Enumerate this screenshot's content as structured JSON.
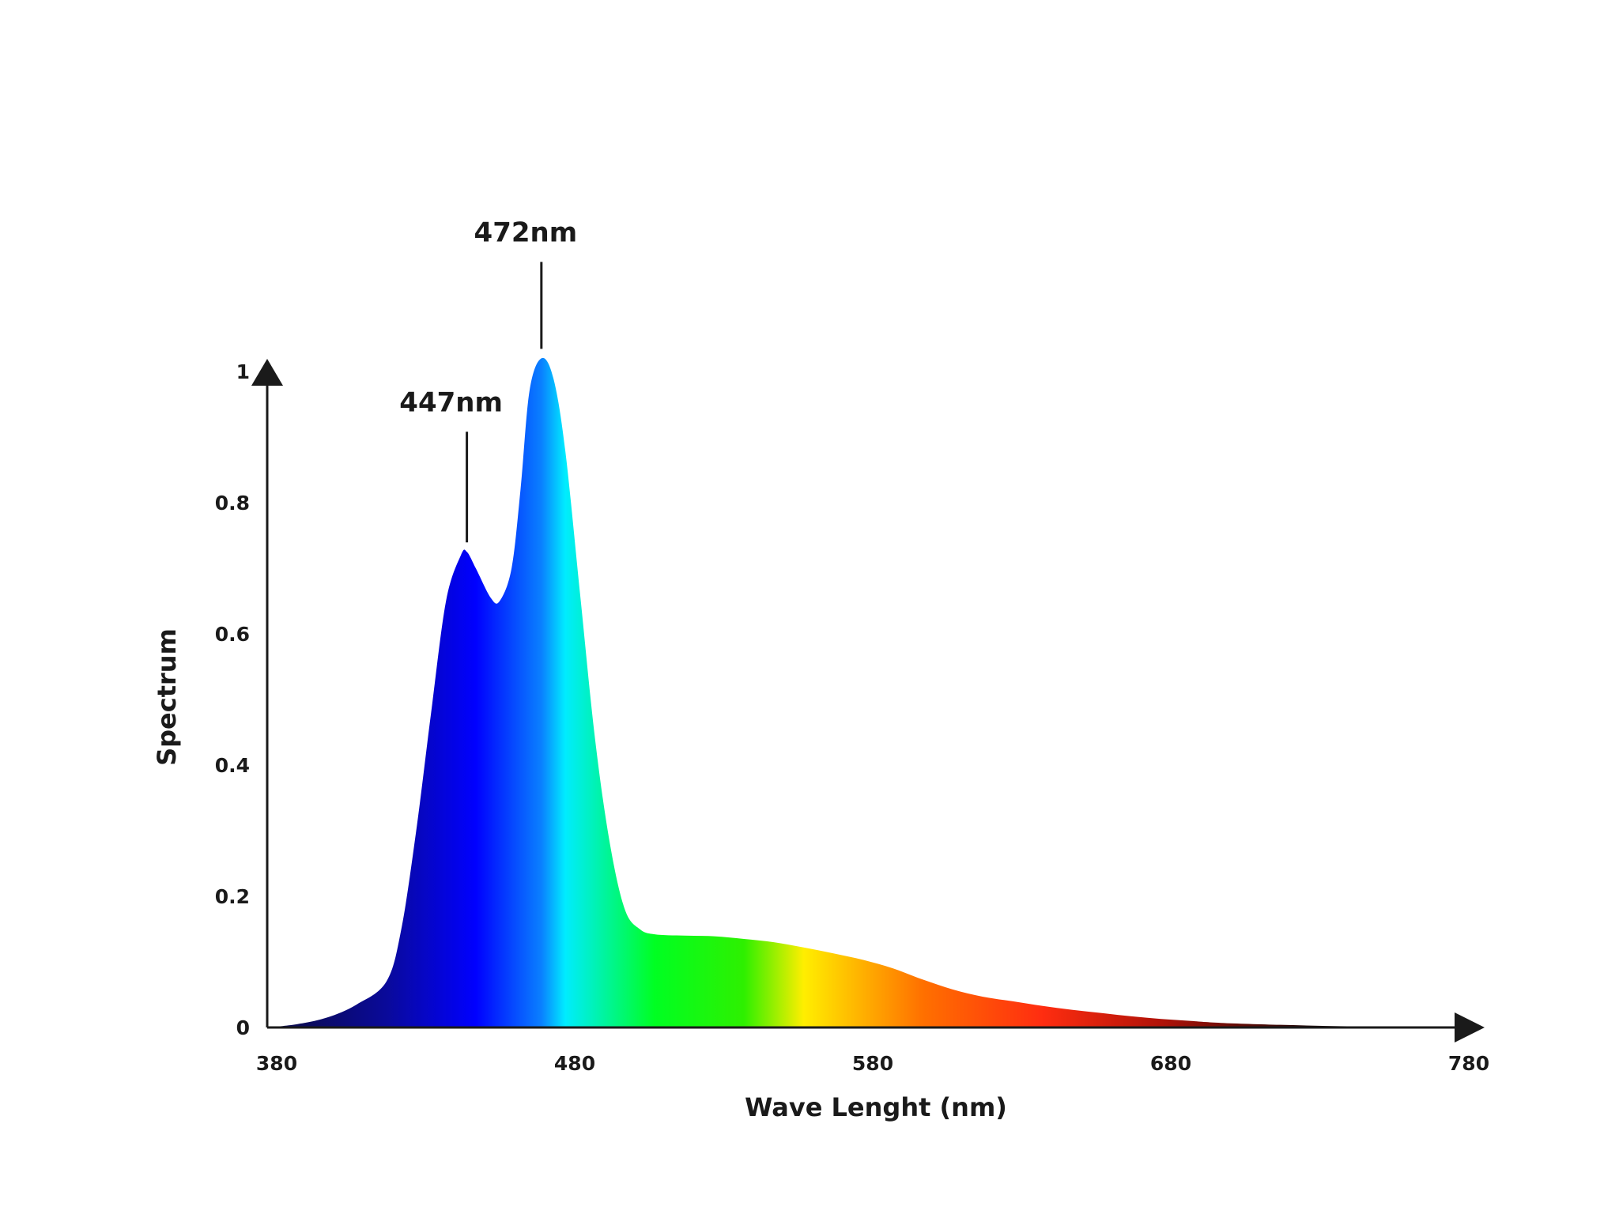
{
  "chart_data": {
    "type": "area",
    "title": "",
    "xlabel": "Wave Lenght (nm)",
    "ylabel": "Spectrum",
    "xlim": [
      380,
      780
    ],
    "ylim": [
      0,
      1
    ],
    "x_ticks": [
      "380",
      "480",
      "580",
      "680",
      "780"
    ],
    "y_ticks": [
      "0",
      "0.2",
      "0.4",
      "0.6",
      "0.8",
      "1"
    ],
    "grid": false,
    "series": [
      {
        "points": [
          [
            380,
            0
          ],
          [
            390,
            0.005
          ],
          [
            400,
            0.015
          ],
          [
            410,
            0.035
          ],
          [
            420,
            0.07
          ],
          [
            425,
            0.15
          ],
          [
            430,
            0.3
          ],
          [
            435,
            0.48
          ],
          [
            440,
            0.65
          ],
          [
            445,
            0.72
          ],
          [
            447,
            0.725
          ],
          [
            450,
            0.7
          ],
          [
            455,
            0.655
          ],
          [
            458,
            0.65
          ],
          [
            462,
            0.7
          ],
          [
            465,
            0.82
          ],
          [
            468,
            0.97
          ],
          [
            472,
            1.02
          ],
          [
            476,
            0.99
          ],
          [
            480,
            0.88
          ],
          [
            485,
            0.66
          ],
          [
            490,
            0.44
          ],
          [
            495,
            0.28
          ],
          [
            500,
            0.18
          ],
          [
            505,
            0.15
          ],
          [
            510,
            0.142
          ],
          [
            520,
            0.14
          ],
          [
            530,
            0.139
          ],
          [
            540,
            0.135
          ],
          [
            550,
            0.13
          ],
          [
            560,
            0.122
          ],
          [
            570,
            0.113
          ],
          [
            580,
            0.103
          ],
          [
            590,
            0.09
          ],
          [
            600,
            0.073
          ],
          [
            610,
            0.058
          ],
          [
            620,
            0.047
          ],
          [
            630,
            0.04
          ],
          [
            640,
            0.033
          ],
          [
            650,
            0.027
          ],
          [
            660,
            0.022
          ],
          [
            670,
            0.017
          ],
          [
            680,
            0.013
          ],
          [
            690,
            0.01
          ],
          [
            700,
            0.007
          ],
          [
            720,
            0.004
          ],
          [
            740,
            0.002
          ],
          [
            760,
            0.001
          ],
          [
            780,
            0
          ]
        ]
      }
    ],
    "annotations": [
      {
        "label": "447nm",
        "x": 447,
        "y": 0.725
      },
      {
        "label": "472nm",
        "x": 472,
        "y": 1.02
      }
    ],
    "gradient_colors": [
      {
        "wavelength": 390,
        "color": "#0b0b55"
      },
      {
        "wavelength": 420,
        "color": "#0a0a9a"
      },
      {
        "wavelength": 450,
        "color": "#0000ff"
      },
      {
        "wavelength": 472,
        "color": "#0a80ff"
      },
      {
        "wavelength": 480,
        "color": "#00ecff"
      },
      {
        "wavelength": 510,
        "color": "#00ff22"
      },
      {
        "wavelength": 540,
        "color": "#2ef000"
      },
      {
        "wavelength": 560,
        "color": "#ffee00"
      },
      {
        "wavelength": 600,
        "color": "#ff7000"
      },
      {
        "wavelength": 640,
        "color": "#ff2d10"
      },
      {
        "wavelength": 680,
        "color": "#b01208"
      },
      {
        "wavelength": 730,
        "color": "#1a0605"
      },
      {
        "wavelength": 780,
        "color": "#0a0a0a"
      }
    ],
    "axis_color": "#1a1a1a"
  }
}
